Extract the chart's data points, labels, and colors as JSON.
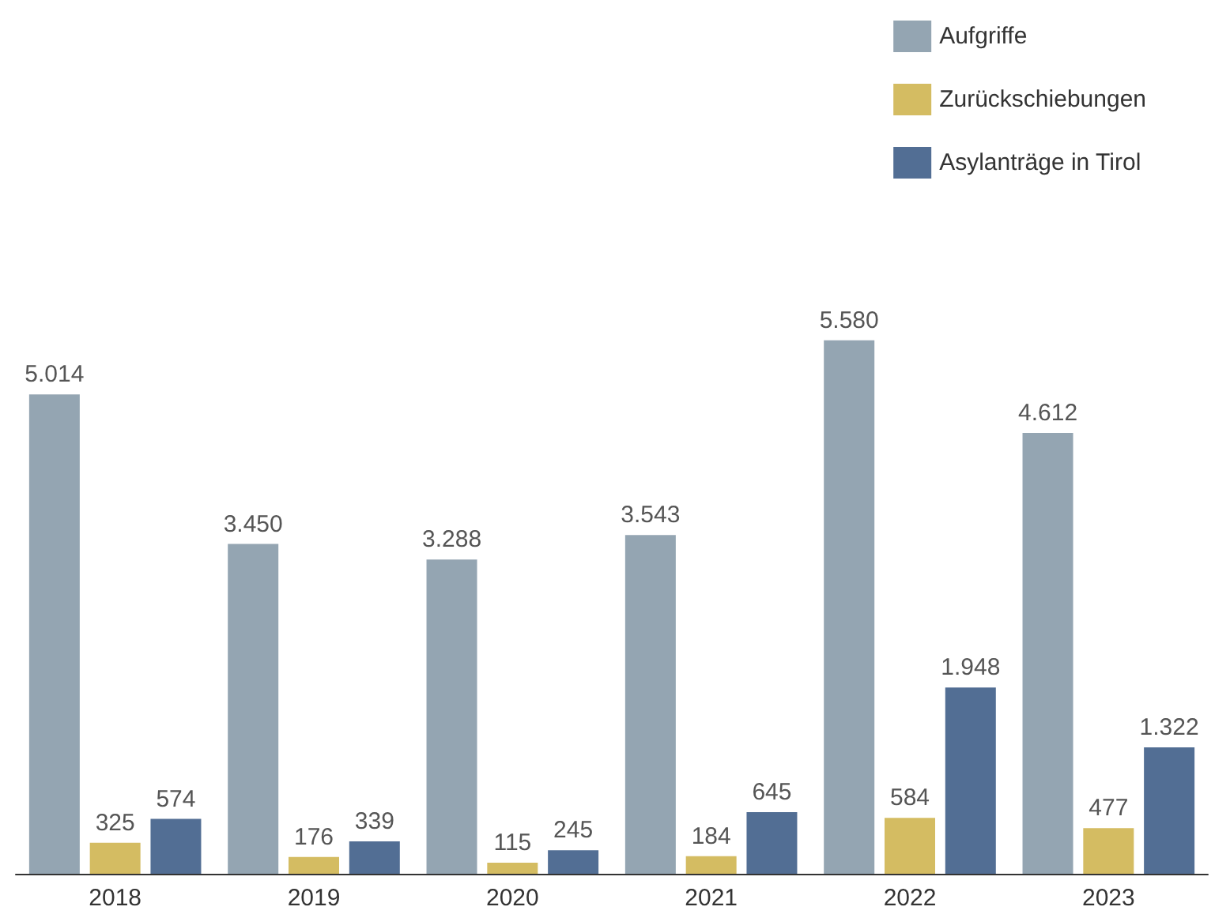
{
  "chart_data": {
    "type": "bar",
    "categories": [
      "2018",
      "2019",
      "2020",
      "2021",
      "2022",
      "2023"
    ],
    "series": [
      {
        "name": "Aufgriffe",
        "color": "#94a5b2",
        "values": [
          5014,
          3450,
          3288,
          3543,
          5580,
          4612
        ],
        "value_labels": [
          "5.014",
          "3.450",
          "3.288",
          "3.543",
          "5.580",
          "4.612"
        ]
      },
      {
        "name": "Zurückschiebungen",
        "color": "#d4bc62",
        "values": [
          325,
          176,
          115,
          184,
          584,
          477
        ],
        "value_labels": [
          "325",
          "176",
          "115",
          "184",
          "584",
          "477"
        ]
      },
      {
        "name": "Asylanträge in Tirol",
        "color": "#526e94",
        "values": [
          574,
          339,
          245,
          645,
          1948,
          1322
        ],
        "value_labels": [
          "574",
          "339",
          "245",
          "645",
          "1.948",
          "1.322"
        ]
      }
    ],
    "legend": "top right"
  }
}
